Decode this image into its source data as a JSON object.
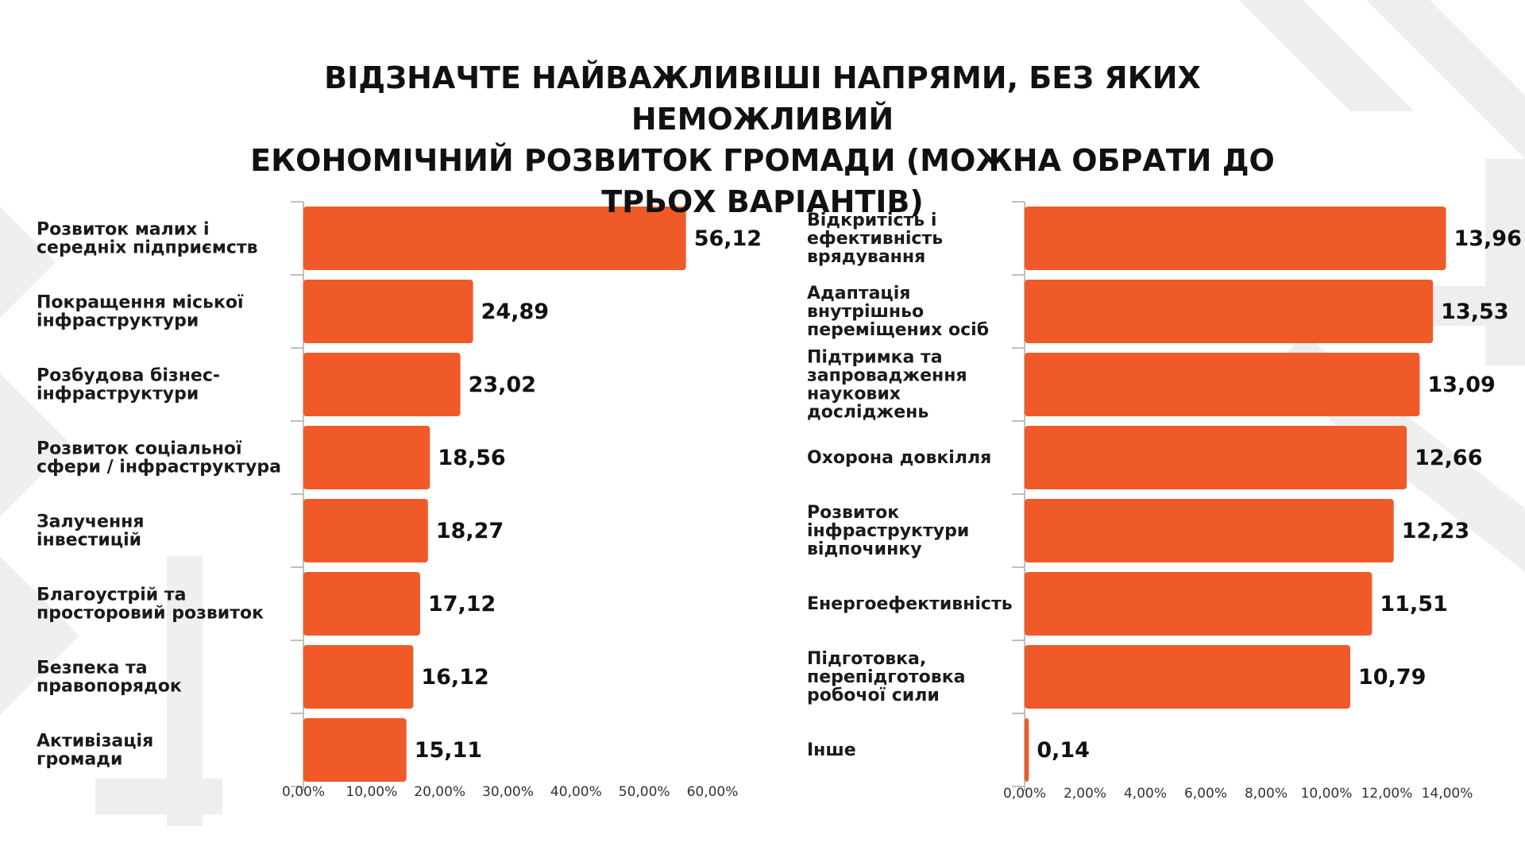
{
  "title_lines": [
    "ВІДЗНАЧТЕ НАЙВАЖЛИВІШІ НАПРЯМИ, БЕЗ ЯКИХ НЕМОЖЛИВИЙ",
    "ЕКОНОМІЧНИЙ РОЗВИТОК  ГРОМАДИ (МОЖНА ОБРАТИ ДО",
    "ТРЬОХ ВАРІАНТІВ)"
  ],
  "colors": {
    "bar": "#f05a28",
    "background": "#ffffff",
    "decor": "#e6e6e6",
    "axis": "#bfbfbf"
  },
  "chart_data": [
    {
      "type": "bar",
      "orientation": "horizontal",
      "categories": [
        [
          "Розвиток малих і",
          "середніх підприємств"
        ],
        [
          "Покращення міської",
          "інфраструктури"
        ],
        [
          "Розбудова бізнес-",
          "інфраструктури"
        ],
        [
          "Розвиток соціальної",
          "сфери / інфраструктура"
        ],
        [
          "Залучення",
          "інвестицій"
        ],
        [
          "Благоустрій та",
          "просторовий розвиток"
        ],
        [
          " Безпека та",
          "правопорядок"
        ],
        [
          " Активізація",
          "громади"
        ]
      ],
      "values": [
        56.12,
        24.89,
        23.02,
        18.56,
        18.27,
        17.12,
        16.12,
        15.11
      ],
      "value_labels": [
        "56,12",
        "24,89",
        "23,02",
        "18,56",
        "18,27",
        "17,12",
        "16,12",
        "15,11"
      ],
      "xlim": [
        0,
        60
      ],
      "ticks": [
        "0,00%",
        "10,00%",
        "20,00%",
        "30,00%",
        "40,00%",
        "50,00%",
        "60,00%"
      ]
    },
    {
      "type": "bar",
      "orientation": "horizontal",
      "categories": [
        [
          "Відкритість і",
          "ефективність",
          "врядування"
        ],
        [
          "Адаптація",
          "внутрішньо",
          "переміщених осіб"
        ],
        [
          "Підтримка та",
          "запровадження",
          "наукових",
          "досліджень"
        ],
        [
          "Охорона довкілля"
        ],
        [
          "Розвиток",
          "інфраструктури",
          "відпочинку"
        ],
        [
          " Енергоефективність"
        ],
        [
          "Підготовка,",
          "перепідготовка",
          "робочої сили"
        ],
        [
          "Інше"
        ]
      ],
      "values": [
        13.96,
        13.53,
        13.09,
        12.66,
        12.23,
        11.51,
        10.79,
        0.14
      ],
      "value_labels": [
        "13,96",
        "13,53",
        "13,09",
        "12,66",
        "12,23",
        "11,51",
        "10,79",
        "0,14"
      ],
      "xlim": [
        0,
        14
      ],
      "ticks": [
        "0,00%",
        "2,00%",
        "4,00%",
        "6,00%",
        "8,00%",
        "10,00%",
        "12,00%",
        "14,00%"
      ]
    }
  ]
}
